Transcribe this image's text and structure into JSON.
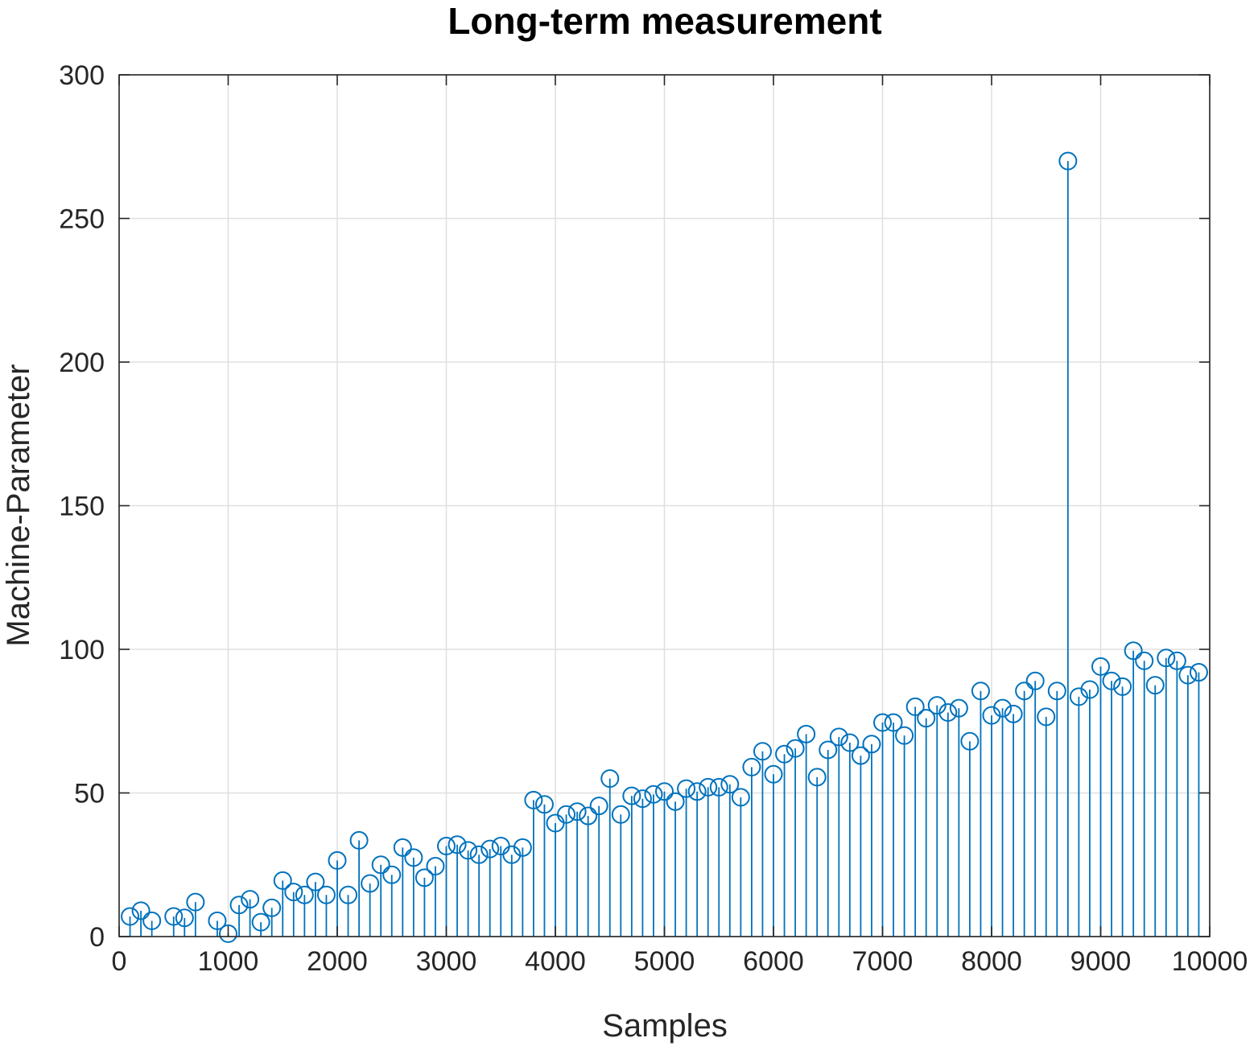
{
  "chart_data": {
    "type": "stem",
    "title": "Long-term measurement",
    "xlabel": "Samples",
    "ylabel": "Machine-Parameter",
    "xlim": [
      0,
      10000
    ],
    "ylim": [
      0,
      300
    ],
    "xticks": [
      0,
      1000,
      2000,
      3000,
      4000,
      5000,
      6000,
      7000,
      8000,
      9000,
      10000
    ],
    "yticks": [
      0,
      50,
      100,
      150,
      200,
      250,
      300
    ],
    "grid": true,
    "legend": "none",
    "series": [
      {
        "color": "#0072BD",
        "marker": "circle",
        "x": [
          100,
          200,
          300,
          400,
          500,
          600,
          700,
          800,
          900,
          1000,
          1100,
          1200,
          1300,
          1400,
          1500,
          1600,
          1700,
          1800,
          1900,
          2000,
          2100,
          2200,
          2300,
          2400,
          2500,
          2600,
          2700,
          2800,
          2900,
          3000,
          3100,
          3200,
          3300,
          3400,
          3500,
          3600,
          3700,
          3800,
          3900,
          4000,
          4100,
          4200,
          4300,
          4400,
          4500,
          4600,
          4700,
          4800,
          4900,
          5000,
          5100,
          5200,
          5300,
          5400,
          5500,
          5600,
          5700,
          5800,
          5900,
          6000,
          6100,
          6200,
          6300,
          6400,
          6500,
          6600,
          6700,
          6800,
          6900,
          7000,
          7100,
          7200,
          7300,
          7400,
          7500,
          7600,
          7700,
          7800,
          7900,
          8000,
          8100,
          8200,
          8300,
          8400,
          8500,
          8600,
          8700,
          8800,
          8900,
          9000,
          9100,
          9200,
          9300,
          9400,
          9500,
          9600,
          9700,
          9800,
          9900
        ],
        "y": [
          7,
          9,
          5.5,
          null,
          7,
          6.5,
          12,
          null,
          5.5,
          1,
          11,
          13,
          5,
          10,
          19.5,
          15.5,
          14.5,
          19,
          14.5,
          26.5,
          14.5,
          33.5,
          18.5,
          25,
          21.5,
          31,
          27.5,
          20.5,
          24.5,
          31.5,
          32,
          30,
          28.5,
          30.5,
          31.5,
          28.5,
          31,
          47.5,
          46,
          39.5,
          42.5,
          43.5,
          42,
          45.5,
          55,
          42.5,
          49,
          48,
          49.5,
          50.5,
          47,
          51.5,
          50.5,
          52,
          52,
          53,
          48.5,
          59,
          64.5,
          56.5,
          63.5,
          65.5,
          70.5,
          55.5,
          65,
          69.5,
          67.5,
          63,
          67,
          74.5,
          74.5,
          70,
          80,
          76,
          80.5,
          78,
          79.5,
          68,
          85.5,
          77,
          79.5,
          77.5,
          85.5,
          89,
          76.5,
          85.5,
          270,
          83.5,
          86,
          94,
          89,
          87,
          99.5,
          96,
          87.5,
          97,
          96,
          91,
          92
        ]
      }
    ]
  }
}
